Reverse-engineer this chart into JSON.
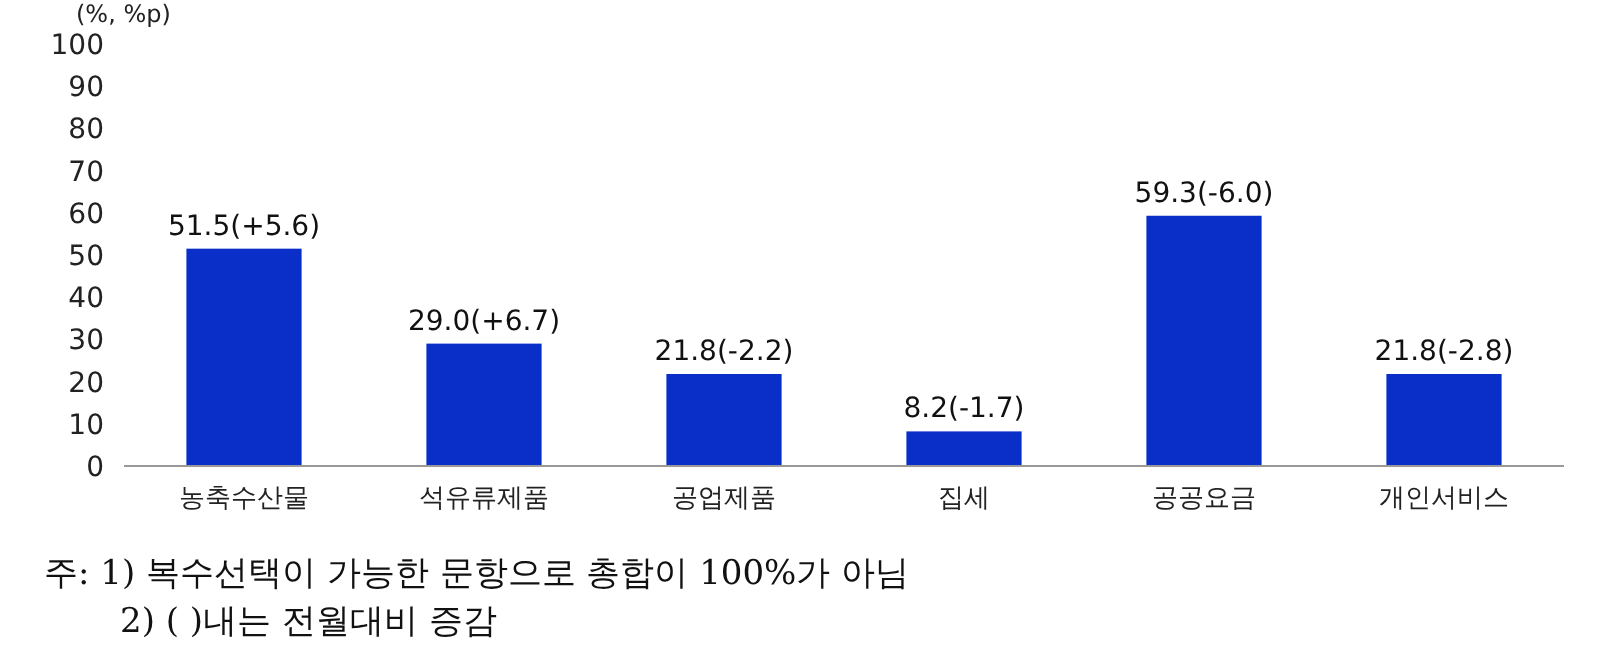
{
  "chart_data": {
    "type": "bar",
    "ylabel": "(%, %p)",
    "categories": [
      "농축수산물",
      "석유류제품",
      "공업제품",
      "집세",
      "공공요금",
      "개인서비스"
    ],
    "values": [
      51.5,
      29.0,
      21.8,
      8.2,
      59.3,
      21.8
    ],
    "value_labels": [
      "51.5(+5.6)",
      "29.0(+6.7)",
      "21.8(-2.2)",
      "8.2(-1.7)",
      "59.3(-6.0)",
      "21.8(-2.8)"
    ],
    "color": "#0a2fc8",
    "ylim": [
      0,
      100
    ],
    "yticks": [
      0,
      10,
      20,
      30,
      40,
      50,
      60,
      70,
      80,
      90,
      100
    ],
    "grid": false,
    "annotations": [
      "주: 1) 복수선택이 가능한 문항으로 총합이 100%가 아님",
      "2) ( )내는 전월대비 증감"
    ]
  }
}
